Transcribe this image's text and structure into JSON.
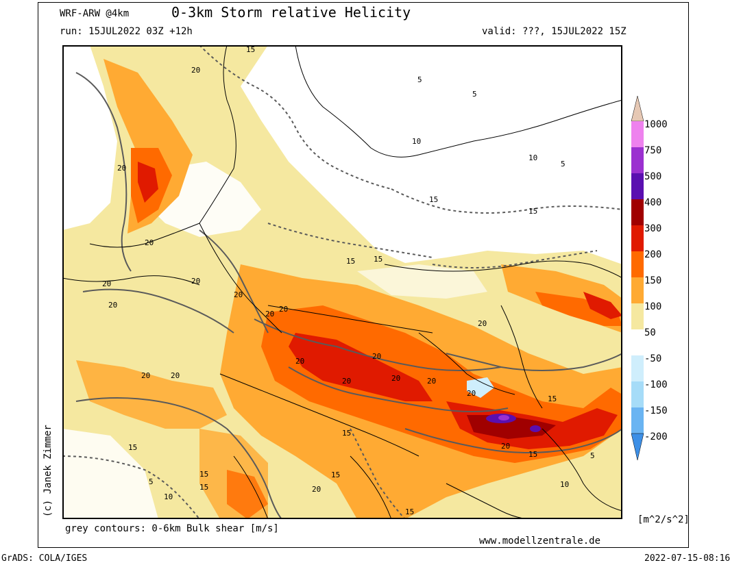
{
  "header": {
    "model": "WRF-ARW @4km",
    "title": "0-3km Storm relative Helicity",
    "run": "run: 15JUL2022 03Z +12h",
    "valid": "valid: ???, 15JUL2022 15Z"
  },
  "credit": "(c) Janek Zimmer",
  "footer": {
    "contours": "grey contours: 0-6km Bulk shear [m/s]",
    "site": "www.modellzentrale.de",
    "grads": "GrADS: COLA/IGES",
    "stamp": "2022-07-15-08:16"
  },
  "legend": {
    "units": "[m^2/s^2]",
    "levels": [
      "1000",
      "750",
      "500",
      "400",
      "300",
      "200",
      "150",
      "100",
      "50",
      "-50",
      "-100",
      "-150",
      "-200"
    ],
    "colors": [
      "#e6c8b4",
      "#ee82ee",
      "#9b30d0",
      "#5a0fb0",
      "#a00000",
      "#e01a00",
      "#ff6a00",
      "#ffaa33",
      "#f5e8a0",
      "#ffffff",
      "#cfeefc",
      "#a6dcf8",
      "#6ab4f2",
      "#3d8fe6"
    ]
  },
  "map": {
    "contour_labels": [
      "15",
      "20",
      "20",
      "20",
      "20",
      "20",
      "20",
      "20",
      "20",
      "20",
      "20",
      "20",
      "20",
      "20",
      "20",
      "20",
      "20",
      "20",
      "20",
      "20",
      "15",
      "15",
      "15",
      "15",
      "15",
      "15",
      "15",
      "15",
      "15",
      "15",
      "5",
      "5",
      "5",
      "5",
      "5",
      "10",
      "10",
      "10",
      "10",
      "15",
      "20",
      "15"
    ]
  }
}
